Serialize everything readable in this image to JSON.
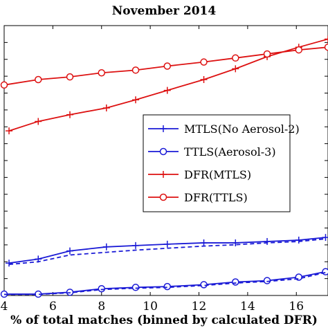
{
  "chart_data": {
    "type": "line",
    "title": "November 2014",
    "xlabel": "% of total matches (binned by calculated DFR)",
    "ylabel": "",
    "xlim": [
      4,
      17.3
    ],
    "ylim": [
      0,
      1
    ],
    "xticks": [
      4,
      6,
      8,
      10,
      12,
      14,
      16
    ],
    "xtick_labels": [
      "4",
      "6",
      "8",
      "10",
      "12",
      "14",
      "16"
    ],
    "grid": false,
    "legend_position": "center-right",
    "series": [
      {
        "name": "MTLS(No Aerosol-2)",
        "color": "#1a1ad6",
        "marker": "plus",
        "line": "solid",
        "x": [
          4.2,
          5.4,
          6.7,
          8.2,
          9.4,
          10.7,
          12.2,
          13.5,
          14.8,
          16.1,
          17.2
        ],
        "y": [
          0.12,
          0.135,
          0.165,
          0.18,
          0.185,
          0.19,
          0.195,
          0.195,
          0.2,
          0.205,
          0.215
        ]
      },
      {
        "name": "",
        "color": "#1a1ad6",
        "marker": "none",
        "line": "dashed",
        "x": [
          4.2,
          5.4,
          6.7,
          8.2,
          9.4,
          10.7,
          12.2,
          13.5,
          14.8,
          16.1,
          17.2
        ],
        "y": [
          0.115,
          0.125,
          0.15,
          0.16,
          0.168,
          0.175,
          0.183,
          0.188,
          0.195,
          0.2,
          0.21
        ]
      },
      {
        "name": "TTLS(Aerosol-3)",
        "color": "#1a1ad6",
        "marker": "circle",
        "line": "solid",
        "x": [
          4.0,
          5.4,
          6.7,
          8.0,
          9.4,
          10.7,
          12.2,
          13.5,
          14.8,
          16.1,
          17.2
        ],
        "y": [
          0.005,
          0.005,
          0.012,
          0.025,
          0.03,
          0.033,
          0.04,
          0.05,
          0.055,
          0.068,
          0.088
        ]
      },
      {
        "name": "",
        "color": "#1a1ad6",
        "marker": "none",
        "line": "dashed",
        "x": [
          4.0,
          5.4,
          6.7,
          8.0,
          9.4,
          10.7,
          12.2,
          13.5,
          14.8,
          16.1,
          17.2
        ],
        "y": [
          0.004,
          0.004,
          0.01,
          0.022,
          0.027,
          0.03,
          0.037,
          0.046,
          0.052,
          0.062,
          0.085
        ]
      },
      {
        "name": "DFR(MTLS)",
        "color": "#dd1111",
        "marker": "plus",
        "line": "solid",
        "x": [
          4.2,
          5.4,
          6.7,
          8.2,
          9.4,
          10.7,
          12.2,
          13.5,
          14.8,
          16.1,
          17.3
        ],
        "y": [
          0.61,
          0.645,
          0.67,
          0.695,
          0.725,
          0.76,
          0.8,
          0.84,
          0.885,
          0.92,
          0.95
        ]
      },
      {
        "name": "DFR(TTLS)",
        "color": "#dd1111",
        "marker": "circle",
        "line": "solid",
        "x": [
          4.0,
          5.4,
          6.7,
          8.0,
          9.4,
          10.7,
          12.2,
          13.5,
          14.8,
          16.1,
          17.3
        ],
        "y": [
          0.78,
          0.8,
          0.81,
          0.825,
          0.835,
          0.85,
          0.865,
          0.88,
          0.895,
          0.91,
          0.92
        ]
      }
    ]
  }
}
